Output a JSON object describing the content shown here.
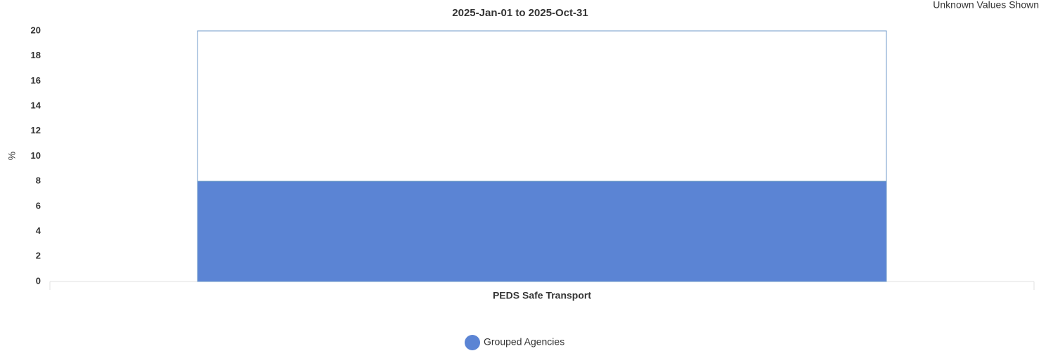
{
  "chart_data": {
    "type": "stacked_bar",
    "title": "2025-Jan-01 to 2025-Oct-31",
    "annotation": "Unknown Values Shown",
    "y_label": "%",
    "categories": [
      "PEDS Safe Transport"
    ],
    "series": [
      {
        "name": "Grouped Agencies",
        "color": "#5b84d4",
        "values": [
          8
        ]
      },
      {
        "color": "#ffffff",
        "values": [
          12
        ]
      }
    ],
    "ylim": [
      0,
      20
    ],
    "yticks": [
      0,
      2,
      4,
      6,
      8,
      10,
      12,
      14,
      16,
      18,
      20
    ],
    "grid": false
  }
}
